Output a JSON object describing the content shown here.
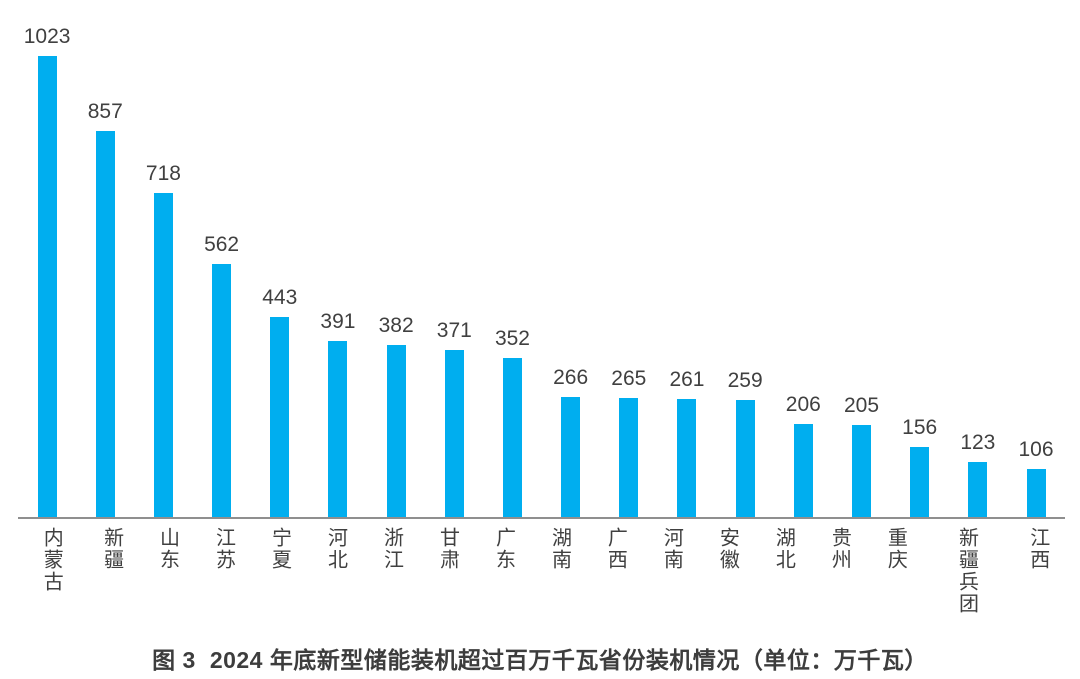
{
  "chart_data": {
    "type": "bar",
    "categories": [
      "内蒙古",
      "新疆",
      "山东",
      "江苏",
      "宁夏",
      "河北",
      "浙江",
      "甘肃",
      "广东",
      "湖南",
      "广西",
      "河南",
      "安徽",
      "湖北",
      "贵州",
      "重庆",
      "新疆兵团",
      "江西"
    ],
    "values": [
      1023,
      857,
      718,
      562,
      443,
      391,
      382,
      371,
      352,
      266,
      265,
      261,
      259,
      206,
      205,
      156,
      123,
      106
    ],
    "title": "图 3  2024 年底新型储能装机超过百万千瓦省份装机情况（单位：万千瓦）",
    "xlabel": "",
    "ylabel": "",
    "unit": "万千瓦",
    "ylim": [
      0,
      1100
    ],
    "grid": false,
    "legend_position": "none",
    "value_labels_shown": true,
    "bar_color": "#00AEEF",
    "axis_line_color": "#8f8f8f",
    "label_text_color": "#404040"
  },
  "caption": {
    "figure_label": "图 3",
    "text": "2024 年底新型储能装机超过百万千瓦省份装机情况（单位：万千瓦）"
  }
}
